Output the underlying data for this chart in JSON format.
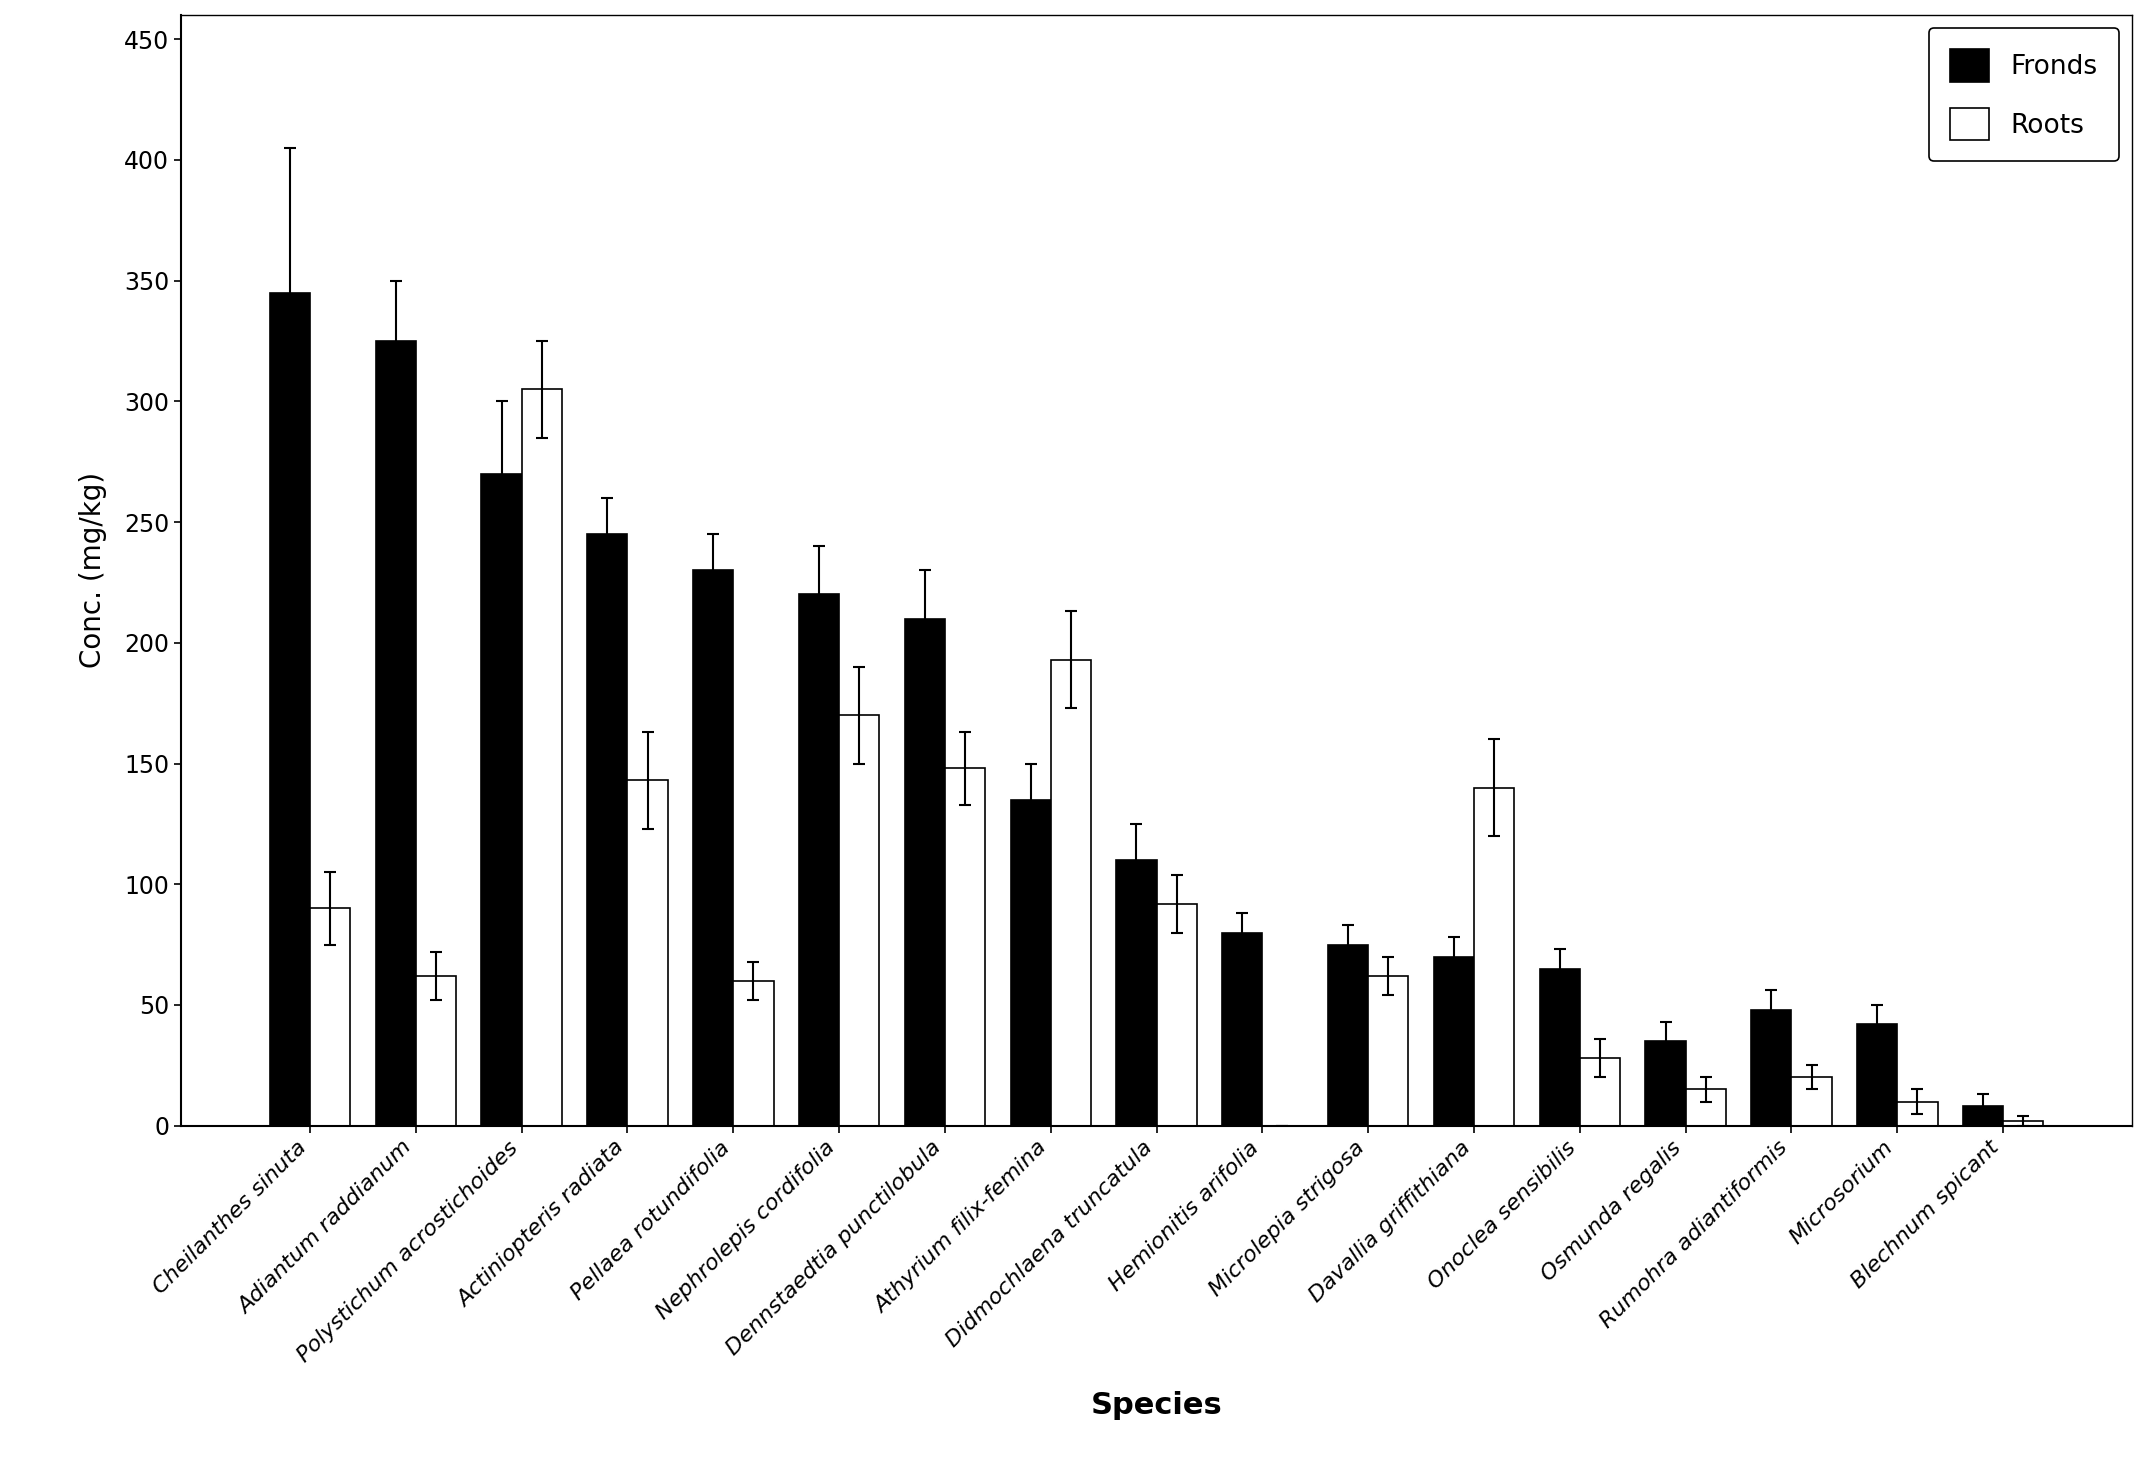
{
  "species": [
    "Cheilanthes sinuta",
    "Adiantum raddianum",
    "Polystichum acrostichoides",
    "Actiniopteris radiata",
    "Pellaea rotundifolia",
    "Nephrolepis cordifolia",
    "Dennstaedtia punctilobula",
    "Athyrium filix-femina",
    "Didmochlaena truncatula",
    "Hemionitis arifolia",
    "Microlepia strigosa",
    "Davallia griffithiana",
    "Onoclea sensibilis",
    "Osmunda regalis",
    "Rumohra adiantiformis",
    "Microsorium",
    "Blechnum spicant"
  ],
  "fronds": [
    345,
    325,
    270,
    245,
    230,
    220,
    210,
    135,
    110,
    80,
    75,
    70,
    65,
    35,
    48,
    42,
    8
  ],
  "fronds_err": [
    60,
    25,
    30,
    15,
    15,
    20,
    20,
    15,
    15,
    8,
    8,
    8,
    8,
    8,
    8,
    8,
    5
  ],
  "roots": [
    90,
    62,
    305,
    143,
    60,
    170,
    148,
    193,
    92,
    0,
    62,
    140,
    28,
    15,
    20,
    10,
    2
  ],
  "roots_err": [
    15,
    10,
    20,
    20,
    8,
    20,
    15,
    20,
    12,
    0,
    8,
    20,
    8,
    5,
    5,
    5,
    2
  ],
  "ylabel": "Conc. (mg/kg)",
  "xlabel": "Species",
  "yticks": [
    0,
    50,
    100,
    150,
    200,
    250,
    300,
    350,
    400,
    450
  ],
  "ylim": [
    0,
    460
  ],
  "fronds_color": "#000000",
  "roots_color": "#ffffff",
  "bar_edgecolor": "#000000",
  "bar_width": 0.38,
  "legend_labels": [
    "Fronds",
    "Roots"
  ],
  "figure_facecolor": "#ffffff",
  "axes_facecolor": "#ffffff"
}
